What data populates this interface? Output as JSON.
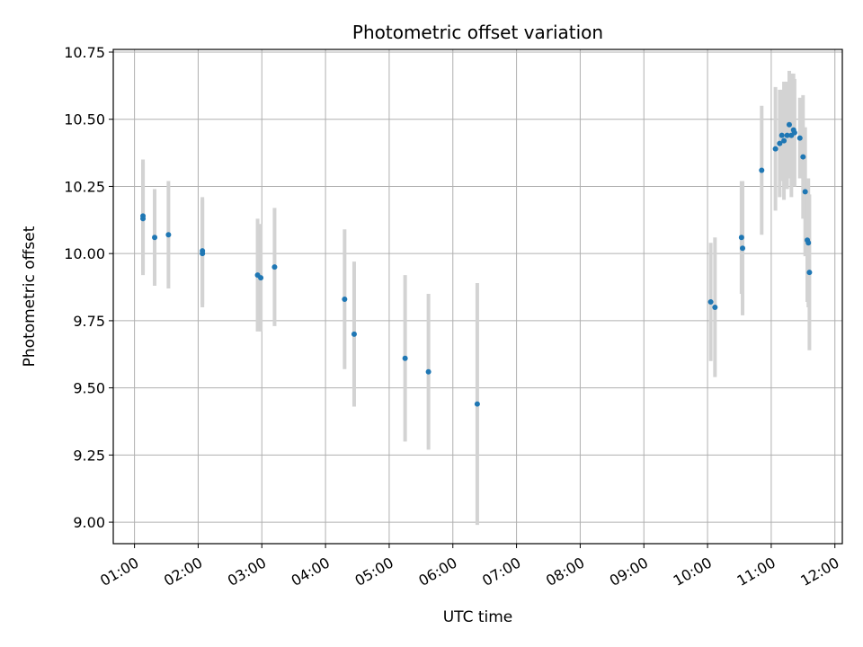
{
  "chart_data": {
    "type": "scatter",
    "title": "Photometric offset variation",
    "xlabel": "UTC time",
    "ylabel": "Photometric offset",
    "x_ticks": [
      "01:00",
      "02:00",
      "03:00",
      "04:00",
      "05:00",
      "06:00",
      "07:00",
      "08:00",
      "09:00",
      "10:00",
      "11:00",
      "12:00"
    ],
    "y_ticks": [
      "9.00",
      "9.25",
      "9.50",
      "9.75",
      "10.00",
      "10.25",
      "10.50",
      "10.75"
    ],
    "xlim": [
      "00:40",
      "12:07"
    ],
    "ylim": [
      8.92,
      10.76
    ],
    "grid": true,
    "point_color": "#1f77b4",
    "errorbar_color": "#d3d3d3",
    "points": [
      {
        "t": "01:08",
        "y": 10.14,
        "err": 0.21
      },
      {
        "t": "01:08",
        "y": 10.13,
        "err": 0.21
      },
      {
        "t": "01:19",
        "y": 10.06,
        "err": 0.18
      },
      {
        "t": "01:32",
        "y": 10.07,
        "err": 0.2
      },
      {
        "t": "02:04",
        "y": 10.01,
        "err": 0.2
      },
      {
        "t": "02:04",
        "y": 10.0,
        "err": 0.2
      },
      {
        "t": "02:56",
        "y": 9.92,
        "err": 0.21
      },
      {
        "t": "02:59",
        "y": 9.91,
        "err": 0.2
      },
      {
        "t": "03:12",
        "y": 9.95,
        "err": 0.22
      },
      {
        "t": "04:18",
        "y": 9.83,
        "err": 0.26
      },
      {
        "t": "04:27",
        "y": 9.7,
        "err": 0.27
      },
      {
        "t": "05:15",
        "y": 9.61,
        "err": 0.31
      },
      {
        "t": "05:37",
        "y": 9.56,
        "err": 0.29
      },
      {
        "t": "06:23",
        "y": 9.44,
        "err": 0.45
      },
      {
        "t": "10:03",
        "y": 9.82,
        "err": 0.22
      },
      {
        "t": "10:07",
        "y": 9.8,
        "err": 0.26
      },
      {
        "t": "10:32",
        "y": 10.06,
        "err": 0.21
      },
      {
        "t": "10:33",
        "y": 10.02,
        "err": 0.25
      },
      {
        "t": "10:51",
        "y": 10.31,
        "err": 0.24
      },
      {
        "t": "11:04",
        "y": 10.39,
        "err": 0.23
      },
      {
        "t": "11:08",
        "y": 10.41,
        "err": 0.2
      },
      {
        "t": "11:10",
        "y": 10.44,
        "err": 0.17
      },
      {
        "t": "11:12",
        "y": 10.42,
        "err": 0.22
      },
      {
        "t": "11:15",
        "y": 10.44,
        "err": 0.2
      },
      {
        "t": "11:17",
        "y": 10.48,
        "err": 0.2
      },
      {
        "t": "11:19",
        "y": 10.44,
        "err": 0.23
      },
      {
        "t": "11:21",
        "y": 10.46,
        "err": 0.21
      },
      {
        "t": "11:22",
        "y": 10.45,
        "err": 0.2
      },
      {
        "t": "11:27",
        "y": 10.43,
        "err": 0.15
      },
      {
        "t": "11:30",
        "y": 10.36,
        "err": 0.23
      },
      {
        "t": "11:32",
        "y": 10.23,
        "err": 0.24
      },
      {
        "t": "11:34",
        "y": 10.05,
        "err": 0.23
      },
      {
        "t": "11:35",
        "y": 10.04,
        "err": 0.24
      },
      {
        "t": "11:36",
        "y": 9.93,
        "err": 0.29
      }
    ]
  }
}
